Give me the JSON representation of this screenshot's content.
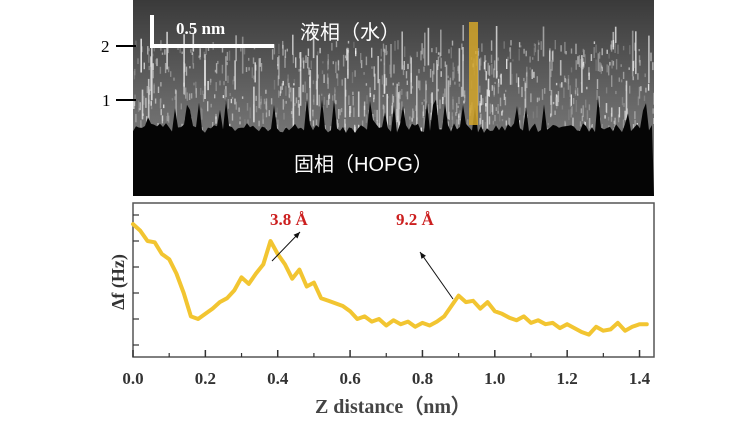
{
  "top_panel": {
    "scale_bar_label": "0.5 nm",
    "liquid_label": "液相（水）",
    "solid_label": "固相（HOPG）",
    "layer_ticks": [
      "1",
      "2"
    ],
    "line_cut_color": "#d4a62a"
  },
  "chart_data": {
    "type": "line",
    "xlabel": "Z distance（nm）",
    "ylabel": "Δf (Hz)",
    "xlim": [
      0.0,
      1.44
    ],
    "x_ticks": [
      "0.0",
      "0.2",
      "0.4",
      "0.6",
      "0.8",
      "1.0",
      "1.2",
      "1.4"
    ],
    "grid": false,
    "line_color": "#f2c531",
    "annotation_color": "#cc1f1f",
    "annotations": [
      {
        "text": "3.8 Å",
        "x": 0.38
      },
      {
        "text": "9.2 Å",
        "x": 0.92
      }
    ],
    "series": [
      {
        "x": [
          0.0,
          0.02,
          0.04,
          0.06,
          0.08,
          0.1,
          0.12,
          0.14,
          0.16,
          0.18,
          0.2,
          0.22,
          0.24,
          0.26,
          0.28,
          0.3,
          0.32,
          0.34,
          0.36,
          0.38,
          0.4,
          0.42,
          0.44,
          0.46,
          0.48,
          0.5,
          0.52,
          0.54,
          0.56,
          0.58,
          0.6,
          0.62,
          0.64,
          0.66,
          0.68,
          0.7,
          0.72,
          0.74,
          0.76,
          0.78,
          0.8,
          0.82,
          0.84,
          0.86,
          0.88,
          0.9,
          0.92,
          0.94,
          0.96,
          0.98,
          1.0,
          1.02,
          1.04,
          1.06,
          1.08,
          1.1,
          1.12,
          1.14,
          1.16,
          1.18,
          1.2,
          1.22,
          1.24,
          1.26,
          1.28,
          1.3,
          1.32,
          1.34,
          1.36,
          1.38,
          1.4,
          1.42
        ],
        "values": [
          0.93,
          0.88,
          0.8,
          0.79,
          0.7,
          0.66,
          0.55,
          0.4,
          0.22,
          0.2,
          0.24,
          0.28,
          0.33,
          0.36,
          0.42,
          0.52,
          0.47,
          0.55,
          0.62,
          0.8,
          0.7,
          0.62,
          0.51,
          0.58,
          0.45,
          0.48,
          0.36,
          0.34,
          0.32,
          0.3,
          0.26,
          0.2,
          0.22,
          0.18,
          0.2,
          0.15,
          0.19,
          0.16,
          0.18,
          0.14,
          0.17,
          0.15,
          0.18,
          0.22,
          0.3,
          0.38,
          0.33,
          0.34,
          0.28,
          0.33,
          0.26,
          0.24,
          0.21,
          0.19,
          0.22,
          0.17,
          0.19,
          0.16,
          0.17,
          0.13,
          0.16,
          0.13,
          0.1,
          0.08,
          0.14,
          0.11,
          0.12,
          0.17,
          0.11,
          0.14,
          0.16,
          0.16
        ]
      }
    ]
  }
}
